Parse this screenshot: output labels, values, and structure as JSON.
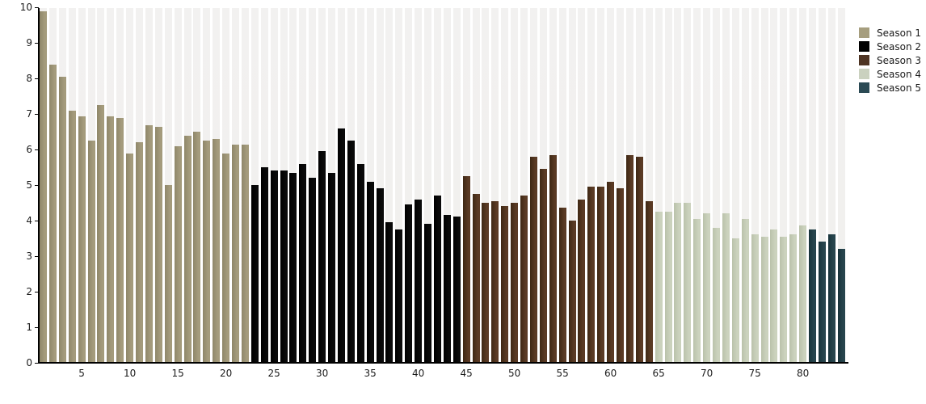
{
  "chart_data": {
    "type": "bar",
    "title": "",
    "xlabel": "",
    "ylabel": "",
    "ylim": [
      0,
      10
    ],
    "yticks": [
      0,
      1,
      2,
      3,
      4,
      5,
      6,
      7,
      8,
      9,
      10
    ],
    "xticks": [
      5,
      10,
      15,
      20,
      25,
      30,
      35,
      40,
      45,
      50,
      55,
      60,
      65,
      70,
      75,
      80
    ],
    "x_unit": "episode-number",
    "grid": "vertical-column-stripes",
    "stripe_color": "#f1f0ee",
    "legend_position": "top-right",
    "series": [
      {
        "name": "Season 1",
        "start_episode": 1,
        "color": "#9c9375",
        "color_left": "#8f876a",
        "color_right": "#a49b7c",
        "values": [
          9.9,
          8.4,
          8.05,
          7.1,
          6.95,
          6.25,
          7.25,
          6.95,
          6.9,
          5.9,
          6.2,
          6.7,
          6.65,
          5.0,
          6.1,
          6.4,
          6.5,
          6.25,
          6.3,
          5.9,
          6.15,
          6.15
        ]
      },
      {
        "name": "Season 2",
        "start_episode": 23,
        "color": "#040404",
        "color_left": "#000000",
        "color_right": "#0a0a0a",
        "values": [
          5.0,
          5.5,
          5.4,
          5.4,
          5.35,
          5.6,
          5.2,
          5.95,
          5.35,
          6.6,
          6.25,
          5.6,
          5.1,
          4.9,
          3.95,
          3.75,
          4.45,
          4.6,
          3.9,
          4.7,
          4.15,
          4.1
        ]
      },
      {
        "name": "Season 3",
        "start_episode": 45,
        "color": "#523420",
        "color_left": "#3e2814",
        "color_right": "#5a3a24",
        "values": [
          5.25,
          4.75,
          4.5,
          4.55,
          4.4,
          4.5,
          4.7,
          5.8,
          5.45,
          5.85,
          4.35,
          4.0,
          4.6,
          4.95,
          4.95,
          5.1,
          4.9,
          5.85,
          5.8,
          4.55
        ]
      },
      {
        "name": "Season 4",
        "start_episode": 65,
        "color": "#c3cab4",
        "color_left": "#bac2ab",
        "color_right": "#cbd2bd",
        "values": [
          4.25,
          4.25,
          4.5,
          4.5,
          4.05,
          4.2,
          3.8,
          4.2,
          3.5,
          4.05,
          3.6,
          3.55,
          3.75,
          3.55,
          3.6,
          3.85
        ]
      },
      {
        "name": "Season 5",
        "start_episode": 81,
        "color": "#213b42",
        "color_left": "#18343b",
        "color_right": "#27454d",
        "values": [
          3.75,
          3.4,
          3.6,
          3.2
        ]
      }
    ]
  },
  "legend": {
    "items": [
      {
        "label": "Season 1",
        "color": "#a69e7e"
      },
      {
        "label": "Season 2",
        "color": "#000000"
      },
      {
        "label": "Season 3",
        "color": "#4e3423"
      },
      {
        "label": "Season 4",
        "color": "#cad1bf"
      },
      {
        "label": "Season 5",
        "color": "#2b4a54"
      }
    ]
  }
}
